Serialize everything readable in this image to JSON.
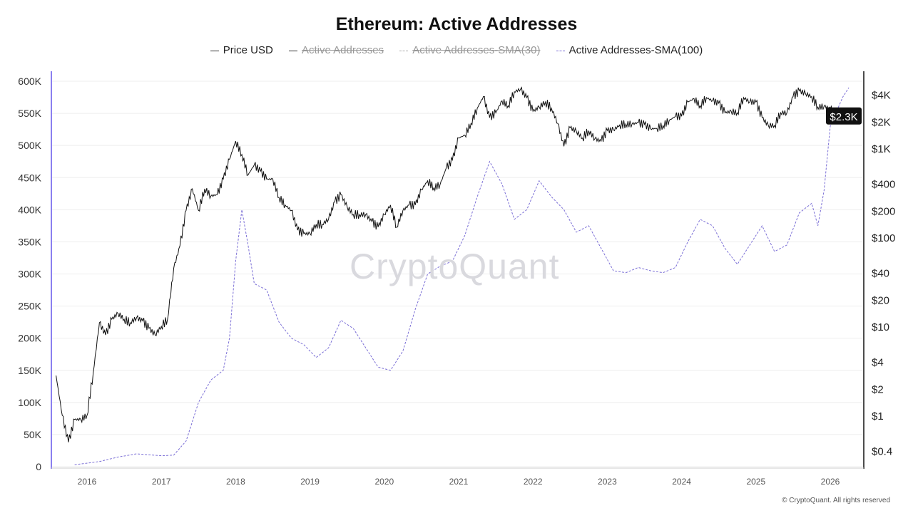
{
  "chart_data": {
    "type": "line",
    "title": "Ethereum: Active Addresses",
    "legend": [
      {
        "label": "Price USD",
        "hidden": false
      },
      {
        "label": "Active Addresses",
        "hidden": true
      },
      {
        "label": "Active Addresses-SMA(30)",
        "hidden": true
      },
      {
        "label": "Active Addresses-SMA(100)",
        "hidden": false
      }
    ],
    "x_ticks": [
      "2016",
      "2017",
      "2018",
      "2019",
      "2020",
      "2021",
      "2022",
      "2023",
      "2024",
      "2025",
      "2026"
    ],
    "left_axis": {
      "ticks": [
        "0",
        "50K",
        "100K",
        "150K",
        "200K",
        "250K",
        "300K",
        "350K",
        "400K",
        "450K",
        "500K",
        "550K",
        "600K"
      ],
      "ylim": [
        0,
        600000
      ]
    },
    "right_axis": {
      "scale": "log",
      "ticks": [
        "$0.4",
        "$1",
        "$2",
        "$4",
        "$10",
        "$20",
        "$40",
        "$100",
        "$200",
        "$400",
        "$1K",
        "$2K",
        "$4K"
      ],
      "current_label": "$2.3K"
    },
    "colors": {
      "price": "#111111",
      "sma100": "#7b6fd6",
      "axis_left": "#8a7ff0"
    },
    "series": [
      {
        "name": "Price USD",
        "axis": "right",
        "points": [
          [
            "2015-08",
            2.8
          ],
          [
            "2015-09",
            1.0
          ],
          [
            "2015-10",
            0.5
          ],
          [
            "2015-11",
            0.9
          ],
          [
            "2015-12",
            0.9
          ],
          [
            "2016-01",
            1.0
          ],
          [
            "2016-02",
            3.0
          ],
          [
            "2016-03",
            11
          ],
          [
            "2016-04",
            8
          ],
          [
            "2016-05",
            12
          ],
          [
            "2016-06",
            14
          ],
          [
            "2016-07",
            12
          ],
          [
            "2016-08",
            11
          ],
          [
            "2016-09",
            12.5
          ],
          [
            "2016-10",
            11.5
          ],
          [
            "2016-11",
            9.5
          ],
          [
            "2016-12",
            8
          ],
          [
            "2017-01",
            10
          ],
          [
            "2017-02",
            12
          ],
          [
            "2017-03",
            45
          ],
          [
            "2017-04",
            80
          ],
          [
            "2017-05",
            200
          ],
          [
            "2017-06",
            350
          ],
          [
            "2017-07",
            200
          ],
          [
            "2017-08",
            350
          ],
          [
            "2017-09",
            290
          ],
          [
            "2017-10",
            300
          ],
          [
            "2017-11",
            450
          ],
          [
            "2017-12",
            750
          ],
          [
            "2018-01",
            1200
          ],
          [
            "2018-02",
            850
          ],
          [
            "2018-03",
            500
          ],
          [
            "2018-04",
            650
          ],
          [
            "2018-05",
            550
          ],
          [
            "2018-06",
            450
          ],
          [
            "2018-07",
            450
          ],
          [
            "2018-08",
            280
          ],
          [
            "2018-09",
            230
          ],
          [
            "2018-10",
            200
          ],
          [
            "2018-11",
            120
          ],
          [
            "2018-12",
            110
          ],
          [
            "2019-01",
            110
          ],
          [
            "2019-02",
            140
          ],
          [
            "2019-03",
            140
          ],
          [
            "2019-04",
            160
          ],
          [
            "2019-05",
            250
          ],
          [
            "2019-06",
            300
          ],
          [
            "2019-07",
            220
          ],
          [
            "2019-08",
            180
          ],
          [
            "2019-09",
            180
          ],
          [
            "2019-10",
            180
          ],
          [
            "2019-11",
            150
          ],
          [
            "2019-12",
            130
          ],
          [
            "2020-01",
            180
          ],
          [
            "2020-02",
            230
          ],
          [
            "2020-03",
            130
          ],
          [
            "2020-04",
            200
          ],
          [
            "2020-05",
            230
          ],
          [
            "2020-06",
            230
          ],
          [
            "2020-07",
            340
          ],
          [
            "2020-08",
            430
          ],
          [
            "2020-09",
            360
          ],
          [
            "2020-10",
            390
          ],
          [
            "2020-11",
            600
          ],
          [
            "2020-12",
            740
          ],
          [
            "2021-01",
            1300
          ],
          [
            "2021-02",
            1400
          ],
          [
            "2021-03",
            1900
          ],
          [
            "2021-04",
            2800
          ],
          [
            "2021-05",
            3800
          ],
          [
            "2021-06",
            2200
          ],
          [
            "2021-07",
            2500
          ],
          [
            "2021-08",
            3400
          ],
          [
            "2021-09",
            3000
          ],
          [
            "2021-10",
            4300
          ],
          [
            "2021-11",
            4600
          ],
          [
            "2021-12",
            3700
          ],
          [
            "2022-01",
            2600
          ],
          [
            "2022-02",
            2900
          ],
          [
            "2022-03",
            3300
          ],
          [
            "2022-04",
            2800
          ],
          [
            "2022-05",
            1900
          ],
          [
            "2022-06",
            1050
          ],
          [
            "2022-07",
            1700
          ],
          [
            "2022-08",
            1550
          ],
          [
            "2022-09",
            1300
          ],
          [
            "2022-10",
            1570
          ],
          [
            "2022-11",
            1280
          ],
          [
            "2022-12",
            1200
          ],
          [
            "2023-01",
            1580
          ],
          [
            "2023-02",
            1600
          ],
          [
            "2023-03",
            1820
          ],
          [
            "2023-04",
            1870
          ],
          [
            "2023-05",
            1870
          ],
          [
            "2023-06",
            1930
          ],
          [
            "2023-07",
            1850
          ],
          [
            "2023-08",
            1650
          ],
          [
            "2023-09",
            1670
          ],
          [
            "2023-10",
            1800
          ],
          [
            "2023-11",
            2050
          ],
          [
            "2023-12",
            2280
          ],
          [
            "2024-01",
            2280
          ],
          [
            "2024-02",
            3300
          ],
          [
            "2024-03",
            3600
          ],
          [
            "2024-04",
            3000
          ],
          [
            "2024-05",
            3700
          ],
          [
            "2024-06",
            3400
          ],
          [
            "2024-07",
            3200
          ],
          [
            "2024-08",
            2500
          ],
          [
            "2024-09",
            2600
          ],
          [
            "2024-10",
            2500
          ],
          [
            "2024-11",
            3700
          ],
          [
            "2024-12",
            3300
          ],
          [
            "2025-01",
            3300
          ],
          [
            "2025-02",
            2200
          ],
          [
            "2025-03",
            1800
          ],
          [
            "2025-04",
            1800
          ],
          [
            "2025-05",
            2500
          ],
          [
            "2025-06",
            2500
          ],
          [
            "2025-07",
            3800
          ],
          [
            "2025-08",
            4400
          ],
          [
            "2025-09",
            4100
          ],
          [
            "2025-10",
            3800
          ],
          [
            "2025-11",
            2900
          ],
          [
            "2025-12",
            2950
          ],
          [
            "2026-01",
            2800
          ],
          [
            "2026-02",
            2000
          ],
          [
            "2026-03",
            2100
          ],
          [
            "2026-04",
            2300
          ]
        ]
      },
      {
        "name": "Active Addresses-SMA(100)",
        "axis": "left",
        "points": [
          [
            "2015-11",
            3000
          ],
          [
            "2016-03",
            8000
          ],
          [
            "2016-06",
            15000
          ],
          [
            "2016-09",
            20000
          ],
          [
            "2017-01",
            17000
          ],
          [
            "2017-03",
            18000
          ],
          [
            "2017-05",
            40000
          ],
          [
            "2017-07",
            100000
          ],
          [
            "2017-09",
            135000
          ],
          [
            "2017-11",
            150000
          ],
          [
            "2017-12",
            200000
          ],
          [
            "2018-01",
            320000
          ],
          [
            "2018-02",
            400000
          ],
          [
            "2018-03",
            345000
          ],
          [
            "2018-04",
            285000
          ],
          [
            "2018-06",
            275000
          ],
          [
            "2018-08",
            225000
          ],
          [
            "2018-10",
            200000
          ],
          [
            "2018-12",
            190000
          ],
          [
            "2019-02",
            170000
          ],
          [
            "2019-04",
            185000
          ],
          [
            "2019-06",
            228000
          ],
          [
            "2019-08",
            215000
          ],
          [
            "2019-10",
            185000
          ],
          [
            "2019-12",
            155000
          ],
          [
            "2020-02",
            150000
          ],
          [
            "2020-04",
            180000
          ],
          [
            "2020-06",
            245000
          ],
          [
            "2020-08",
            300000
          ],
          [
            "2020-10",
            312000
          ],
          [
            "2020-12",
            320000
          ],
          [
            "2021-02",
            360000
          ],
          [
            "2021-04",
            420000
          ],
          [
            "2021-06",
            475000
          ],
          [
            "2021-08",
            440000
          ],
          [
            "2021-10",
            385000
          ],
          [
            "2021-12",
            400000
          ],
          [
            "2022-02",
            445000
          ],
          [
            "2022-04",
            420000
          ],
          [
            "2022-06",
            400000
          ],
          [
            "2022-08",
            365000
          ],
          [
            "2022-10",
            375000
          ],
          [
            "2022-12",
            340000
          ],
          [
            "2023-02",
            305000
          ],
          [
            "2023-04",
            302000
          ],
          [
            "2023-06",
            310000
          ],
          [
            "2023-08",
            305000
          ],
          [
            "2023-10",
            302000
          ],
          [
            "2023-12",
            310000
          ],
          [
            "2024-02",
            350000
          ],
          [
            "2024-04",
            385000
          ],
          [
            "2024-06",
            375000
          ],
          [
            "2024-08",
            340000
          ],
          [
            "2024-10",
            315000
          ],
          [
            "2024-12",
            345000
          ],
          [
            "2025-02",
            375000
          ],
          [
            "2025-04",
            335000
          ],
          [
            "2025-06",
            345000
          ],
          [
            "2025-08",
            395000
          ],
          [
            "2025-10",
            410000
          ],
          [
            "2025-11",
            375000
          ],
          [
            "2025-12",
            430000
          ],
          [
            "2026-01",
            530000
          ],
          [
            "2026-03",
            575000
          ],
          [
            "2026-04",
            590000
          ]
        ]
      }
    ]
  },
  "watermark": "CryptoQuant",
  "footer": "© CryptoQuant. All rights reserved"
}
